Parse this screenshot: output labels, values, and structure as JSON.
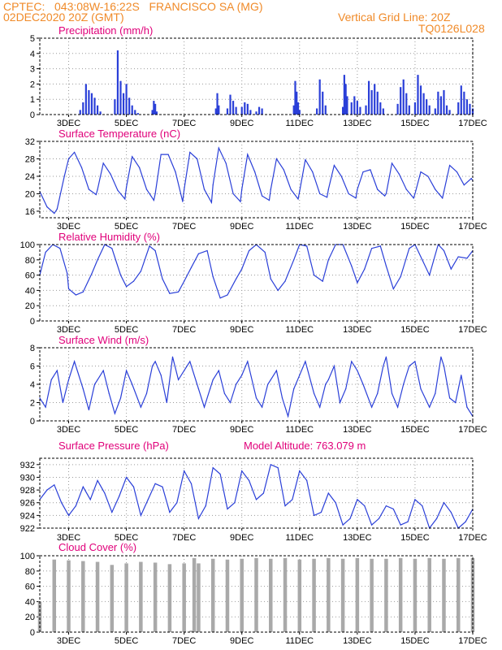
{
  "header": {
    "line1": "CPTEC:   043:08W-16:22S   FRANCISCO SA (MG)",
    "line2": "02DEC2020 20Z (GMT)",
    "grid_note": "Vertical Grid Line: 20Z",
    "code": "TQ0126L028"
  },
  "colors": {
    "header": "#f08a28",
    "title": "#e0007a",
    "line": "#2a3fd8",
    "bar": "#2a3fd8",
    "cloud": "#a9a9a9"
  },
  "x_ticks": [
    "3DEC",
    "5DEC",
    "7DEC",
    "9DEC",
    "11DEC",
    "13DEC",
    "15DEC",
    "17DEC"
  ],
  "chart_data": [
    {
      "type": "bar",
      "title": "Precipitation (mm/h)",
      "ylim": [
        0,
        5
      ],
      "yticks": [
        "0",
        "1",
        "2",
        "3",
        "4",
        "5"
      ],
      "x": [
        3.4,
        3.5,
        3.6,
        3.7,
        3.8,
        3.9,
        4.0,
        4.1,
        4.6,
        4.7,
        4.8,
        4.9,
        5.0,
        5.1,
        5.2,
        5.3,
        5.4,
        5.9,
        5.95,
        6.0,
        6.05,
        8.1,
        8.15,
        8.2,
        8.5,
        8.6,
        8.7,
        8.8,
        9.0,
        9.1,
        9.2,
        9.3,
        9.5,
        9.6,
        9.7,
        10.8,
        10.85,
        10.9,
        10.95,
        11.0,
        11.6,
        11.7,
        11.8,
        11.9,
        12.5,
        12.55,
        12.6,
        12.65,
        12.8,
        12.9,
        13.0,
        13.1,
        13.3,
        13.4,
        13.5,
        13.6,
        13.7,
        13.8,
        13.9,
        14.4,
        14.5,
        14.6,
        14.7,
        14.8,
        15.0,
        15.1,
        15.2,
        15.3,
        15.4,
        15.5,
        15.7,
        15.8,
        15.9,
        16.0,
        16.1,
        16.2,
        16.5,
        16.6,
        16.7,
        16.8,
        16.9,
        17.0
      ],
      "values": [
        0.3,
        0.8,
        2.0,
        1.6,
        1.4,
        1.1,
        0.6,
        0.2,
        1.0,
        4.2,
        2.2,
        1.4,
        2.0,
        1.1,
        0.6,
        0.3,
        0.1,
        0.3,
        0.9,
        0.7,
        0.2,
        0.4,
        1.4,
        0.6,
        0.4,
        1.3,
        0.9,
        0.5,
        0.5,
        0.8,
        0.7,
        0.3,
        0.2,
        0.5,
        0.4,
        0.6,
        2.2,
        1.5,
        0.8,
        0.3,
        0.4,
        2.3,
        1.5,
        0.6,
        0.5,
        2.6,
        2.0,
        1.2,
        0.8,
        1.2,
        0.9,
        0.5,
        0.6,
        2.2,
        1.6,
        2.0,
        1.5,
        0.8,
        0.4,
        0.7,
        1.8,
        2.3,
        1.4,
        0.6,
        0.8,
        2.6,
        1.9,
        1.4,
        1.0,
        0.6,
        0.4,
        1.5,
        1.2,
        1.6,
        0.6,
        0.3,
        0.8,
        1.9,
        1.5,
        1.0,
        0.7,
        0.4
      ],
      "xlim": [
        2.0,
        17.0
      ]
    },
    {
      "type": "line",
      "title": "Surface Temperature (nC)",
      "ylim": [
        14.5,
        32
      ],
      "yticks": [
        "16",
        "20",
        "24",
        "28",
        "32"
      ],
      "x": [
        2.0,
        2.25,
        2.5,
        2.6,
        2.85,
        3.0,
        3.2,
        3.45,
        3.7,
        3.95,
        4.0,
        4.2,
        4.45,
        4.7,
        4.95,
        5.0,
        5.2,
        5.45,
        5.7,
        5.95,
        6.0,
        6.2,
        6.45,
        6.7,
        6.95,
        7.0,
        7.2,
        7.45,
        7.7,
        7.95,
        8.0,
        8.2,
        8.45,
        8.7,
        8.95,
        9.0,
        9.2,
        9.45,
        9.7,
        9.95,
        10.0,
        10.2,
        10.45,
        10.7,
        10.95,
        11.0,
        11.2,
        11.45,
        11.7,
        11.95,
        12.0,
        12.2,
        12.45,
        12.7,
        12.95,
        13.0,
        13.2,
        13.45,
        13.7,
        13.95,
        14.0,
        14.2,
        14.45,
        14.7,
        14.95,
        15.0,
        15.2,
        15.45,
        15.7,
        15.95,
        16.0,
        16.2,
        16.45,
        16.7,
        16.95,
        17.0
      ],
      "values": [
        20.5,
        17.0,
        15.5,
        16.5,
        24.0,
        28.0,
        29.5,
        26.0,
        21.0,
        19.8,
        21.0,
        27.0,
        24.5,
        20.8,
        18.8,
        21.5,
        28.5,
        26.0,
        21.0,
        18.5,
        20.0,
        29.0,
        29.0,
        25.0,
        18.2,
        21.0,
        29.5,
        28.0,
        21.0,
        18.0,
        22.0,
        30.5,
        27.0,
        20.0,
        18.2,
        21.0,
        29.0,
        25.0,
        19.5,
        18.5,
        21.0,
        28.0,
        25.5,
        21.0,
        18.8,
        20.5,
        27.8,
        25.0,
        20.0,
        19.2,
        21.0,
        26.5,
        24.0,
        20.0,
        19.0,
        21.0,
        25.0,
        25.5,
        21.0,
        19.5,
        20.0,
        27.0,
        24.5,
        21.0,
        19.0,
        20.0,
        25.0,
        24.0,
        21.0,
        19.0,
        20.5,
        26.5,
        25.0,
        22.0,
        23.5,
        23.0
      ],
      "xlim": [
        2.0,
        17.0
      ]
    },
    {
      "type": "line",
      "title": "Relative Humidity (%)",
      "ylim": [
        0,
        100
      ],
      "yticks": [
        "0",
        "20",
        "40",
        "60",
        "80",
        "100"
      ],
      "x": [
        2.0,
        2.2,
        2.45,
        2.7,
        2.95,
        3.0,
        3.25,
        3.5,
        3.8,
        4.0,
        4.25,
        4.5,
        4.8,
        5.0,
        5.25,
        5.5,
        5.8,
        6.0,
        6.25,
        6.5,
        6.8,
        7.0,
        7.25,
        7.5,
        7.8,
        8.0,
        8.25,
        8.5,
        8.8,
        9.0,
        9.25,
        9.5,
        9.8,
        10.0,
        10.25,
        10.5,
        10.8,
        11.0,
        11.25,
        11.5,
        11.8,
        12.0,
        12.25,
        12.5,
        12.8,
        13.0,
        13.25,
        13.5,
        13.8,
        14.0,
        14.25,
        14.5,
        14.8,
        15.0,
        15.25,
        15.5,
        15.8,
        16.0,
        16.25,
        16.5,
        16.8,
        17.0
      ],
      "values": [
        60.0,
        90.0,
        100.0,
        95.0,
        62.0,
        42.0,
        34.0,
        38.0,
        62.0,
        80.0,
        100.0,
        95.0,
        60.0,
        45.0,
        52.0,
        65.0,
        98.0,
        92.0,
        55.0,
        36.0,
        38.0,
        52.0,
        70.0,
        88.0,
        92.0,
        58.0,
        30.0,
        34.0,
        55.0,
        68.0,
        92.0,
        100.0,
        90.0,
        55.0,
        40.0,
        52.0,
        80.0,
        100.0,
        98.0,
        60.0,
        52.0,
        80.0,
        100.0,
        100.0,
        72.0,
        50.0,
        68.0,
        95.0,
        98.0,
        72.0,
        42.0,
        58.0,
        95.0,
        100.0,
        80.0,
        60.0,
        100.0,
        92.0,
        68.0,
        84.0,
        82.0,
        92.0
      ],
      "xlim": [
        2.0,
        17.0
      ]
    },
    {
      "type": "line",
      "title": "Surface Wind (m/s)",
      "ylim": [
        0,
        8
      ],
      "yticks": [
        "0",
        "2",
        "4",
        "6",
        "8"
      ],
      "x": [
        2.0,
        2.2,
        2.4,
        2.6,
        2.8,
        3.0,
        3.2,
        3.5,
        3.7,
        3.9,
        4.0,
        4.2,
        4.4,
        4.6,
        4.8,
        5.0,
        5.2,
        5.5,
        5.7,
        5.9,
        6.0,
        6.2,
        6.4,
        6.6,
        6.8,
        7.0,
        7.2,
        7.5,
        7.7,
        7.9,
        8.0,
        8.2,
        8.4,
        8.6,
        8.8,
        9.0,
        9.2,
        9.5,
        9.7,
        9.9,
        10.0,
        10.2,
        10.4,
        10.6,
        10.8,
        11.0,
        11.2,
        11.5,
        11.7,
        11.9,
        12.0,
        12.2,
        12.4,
        12.6,
        12.8,
        13.0,
        13.2,
        13.5,
        13.7,
        13.9,
        14.0,
        14.2,
        14.4,
        14.6,
        14.8,
        15.0,
        15.2,
        15.5,
        15.7,
        15.9,
        16.0,
        16.2,
        16.4,
        16.6,
        16.8,
        17.0
      ],
      "values": [
        2.5,
        1.5,
        4.5,
        5.5,
        2.0,
        4.5,
        6.5,
        3.5,
        1.2,
        4.0,
        4.5,
        5.5,
        3.0,
        0.8,
        2.5,
        5.5,
        4.0,
        1.5,
        3.0,
        6.0,
        6.5,
        5.0,
        2.0,
        7.0,
        4.5,
        5.5,
        6.5,
        3.5,
        1.5,
        3.5,
        4.5,
        5.5,
        3.0,
        2.0,
        4.0,
        5.0,
        6.5,
        2.5,
        1.5,
        4.0,
        4.5,
        5.5,
        2.5,
        0.5,
        3.5,
        5.0,
        6.5,
        3.0,
        1.5,
        4.0,
        4.5,
        6.0,
        2.0,
        3.5,
        6.5,
        5.5,
        4.0,
        1.5,
        3.0,
        6.0,
        7.0,
        3.0,
        1.5,
        4.0,
        6.0,
        6.5,
        3.5,
        1.5,
        3.0,
        7.0,
        6.0,
        2.5,
        2.0,
        5.0,
        1.5,
        0.5
      ],
      "xlim": [
        2.0,
        17.0
      ]
    },
    {
      "type": "line",
      "title": "Surface Pressure (hPa)",
      "annotation": "Model Altitude: 763.079 m",
      "ylim": [
        922,
        933
      ],
      "yticks": [
        "922",
        "924",
        "926",
        "928",
        "930",
        "932"
      ],
      "x": [
        2.0,
        2.25,
        2.5,
        2.75,
        3.0,
        3.25,
        3.5,
        3.75,
        4.0,
        4.25,
        4.5,
        4.75,
        5.0,
        5.25,
        5.5,
        5.75,
        6.0,
        6.25,
        6.5,
        6.75,
        7.0,
        7.25,
        7.5,
        7.75,
        8.0,
        8.25,
        8.5,
        8.75,
        9.0,
        9.25,
        9.5,
        9.75,
        10.0,
        10.25,
        10.5,
        10.75,
        11.0,
        11.25,
        11.5,
        11.75,
        12.0,
        12.25,
        12.5,
        12.75,
        13.0,
        13.25,
        13.5,
        13.75,
        14.0,
        14.25,
        14.5,
        14.75,
        15.0,
        15.25,
        15.5,
        15.75,
        16.0,
        16.25,
        16.5,
        16.75,
        17.0
      ],
      "values": [
        926.5,
        928.0,
        928.8,
        926.0,
        924.0,
        925.5,
        928.5,
        926.5,
        929.5,
        927.5,
        924.5,
        927.0,
        930.0,
        928.5,
        924.0,
        926.5,
        929.0,
        928.5,
        924.5,
        926.0,
        931.0,
        929.0,
        923.5,
        925.5,
        931.5,
        930.5,
        925.0,
        926.0,
        931.0,
        929.5,
        926.5,
        927.5,
        932.0,
        931.5,
        925.5,
        926.5,
        931.0,
        929.5,
        924.0,
        924.5,
        927.5,
        926.0,
        922.5,
        923.5,
        926.5,
        925.5,
        922.5,
        923.5,
        925.5,
        925.0,
        922.5,
        923.0,
        926.5,
        925.5,
        922.0,
        923.5,
        926.0,
        924.5,
        922.0,
        923.0,
        925.0
      ],
      "xlim": [
        2.0,
        17.0
      ]
    },
    {
      "type": "bar",
      "title": "Cloud Cover (%)",
      "ylim": [
        0,
        100
      ],
      "yticks": [
        "0",
        "20",
        "40",
        "60",
        "80",
        "100"
      ],
      "x": [
        2.0,
        2.5,
        3.0,
        3.5,
        4.0,
        4.5,
        5.0,
        5.5,
        6.0,
        6.5,
        7.0,
        7.25,
        7.35,
        7.5,
        8.0,
        8.5,
        9.0,
        9.5,
        10.0,
        10.5,
        11.0,
        11.5,
        12.0,
        12.5,
        13.0,
        13.5,
        14.0,
        14.5,
        15.0,
        15.5,
        16.0,
        16.5,
        17.0
      ],
      "values": [
        40.0,
        95.0,
        94.0,
        93.0,
        92.0,
        88.0,
        90.0,
        92.0,
        91.0,
        89.0,
        90.0,
        2.0,
        97.0,
        90.0,
        96.0,
        95.0,
        96.0,
        97.0,
        96.0,
        97.0,
        95.0,
        96.0,
        97.0,
        96.0,
        97.0,
        96.0,
        96.0,
        97.0,
        96.0,
        97.0,
        96.0,
        97.0,
        97.0
      ],
      "xlim": [
        2.0,
        17.0
      ]
    }
  ]
}
